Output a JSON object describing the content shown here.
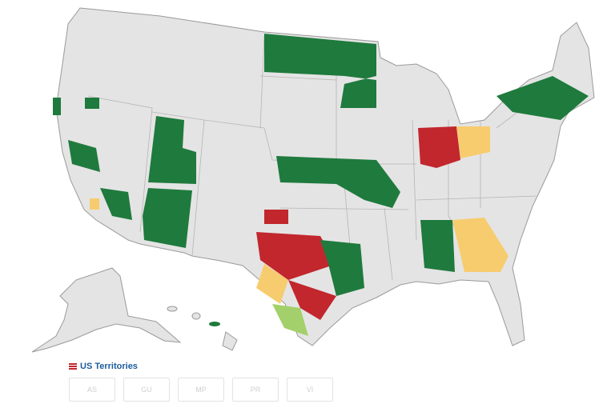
{
  "territories": {
    "title": "US Territories",
    "buttons": [
      "AS",
      "GU",
      "MP",
      "PR",
      "VI"
    ]
  }
}
